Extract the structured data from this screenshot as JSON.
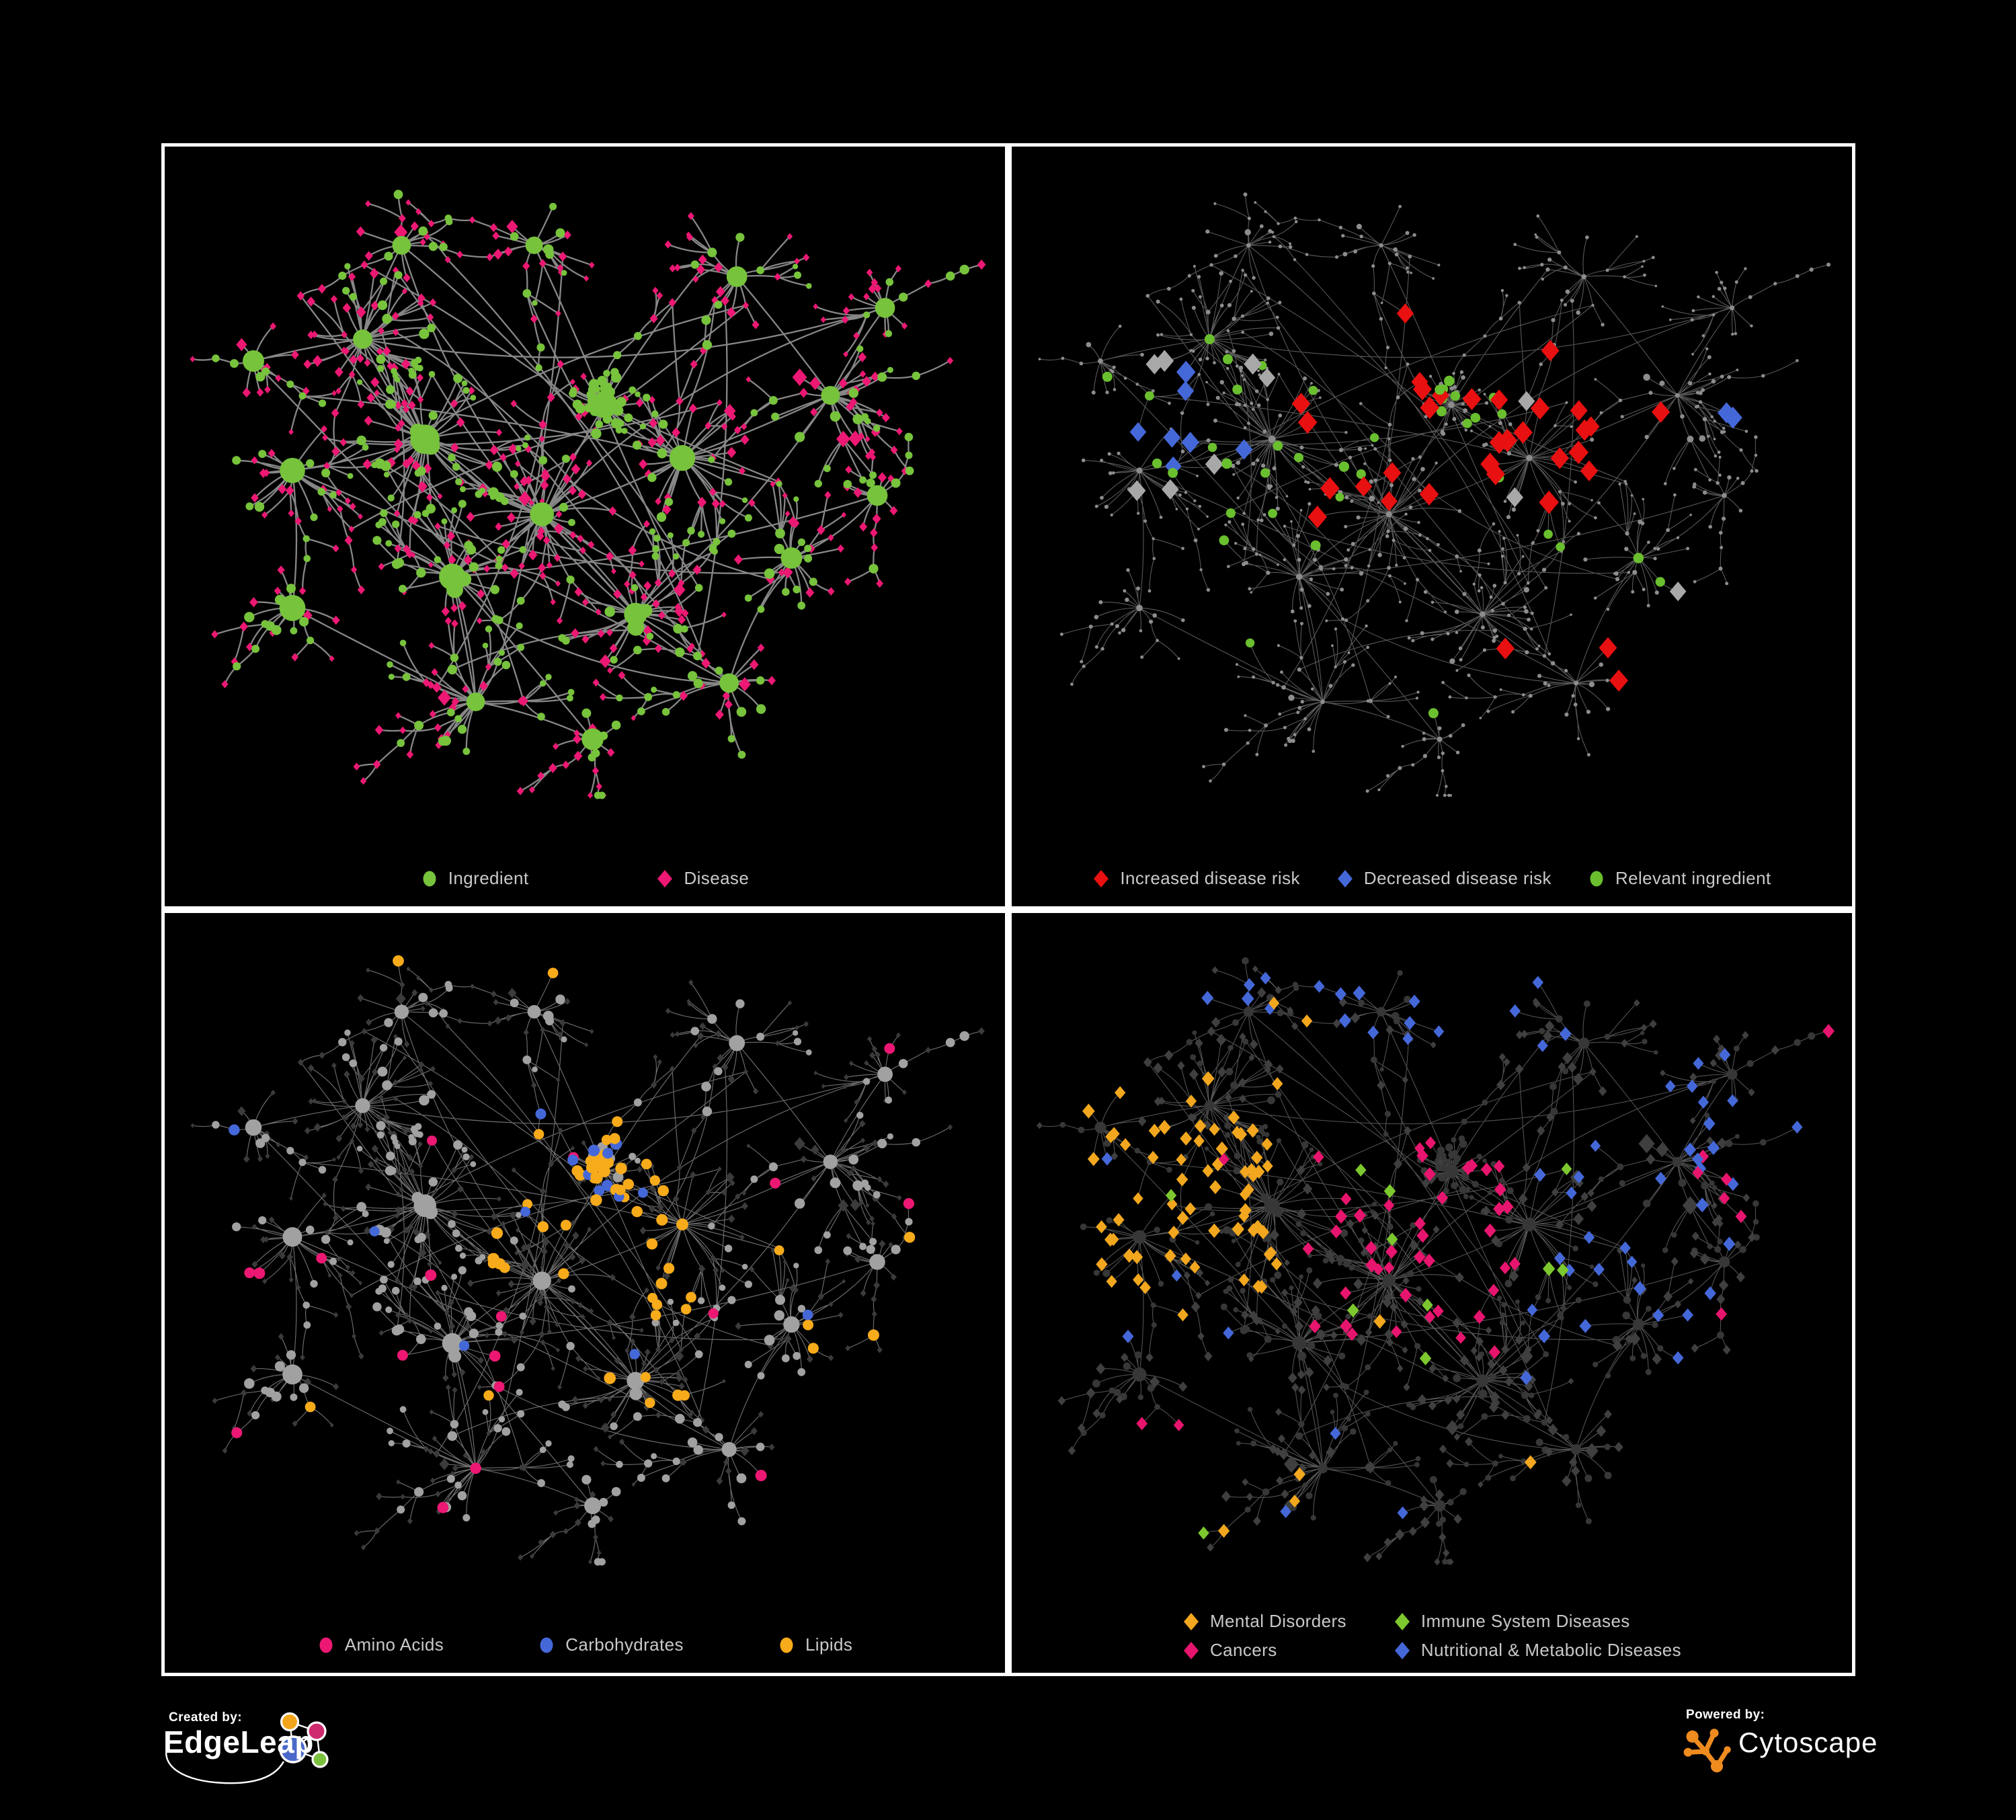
{
  "figure": {
    "background": "#000000",
    "panel_border": "#ffffff",
    "legend_text_color": "#c9c9c9"
  },
  "footer": {
    "created_by": "Created by:",
    "brand": "EdgeLeap",
    "powered_by": "Powered by:",
    "powered_brand": "Cytoscape",
    "edgeleap_colors": {
      "blue": "#4a69c9",
      "yellow": "#f2a51b",
      "pink": "#cf2a70",
      "green": "#7cc13e"
    },
    "cytoscape_orange": "#ef8b1f"
  },
  "panels": [
    {
      "name": "ingredient-disease-network",
      "legend": [
        {
          "label": "Ingredient",
          "shape": "circle",
          "color": "#77c33c"
        },
        {
          "label": "Disease",
          "shape": "diamond",
          "color": "#ec1873"
        }
      ],
      "style": {
        "edge": {
          "color": "#878787",
          "width": 2.3
        },
        "ing": {
          "shape": "circle",
          "fill": "#77c33c",
          "hub": 13,
          "leaf": 6.3
        },
        "dis": {
          "shape": "diamond",
          "fill": "#ec1873",
          "hub": 9,
          "leaf": 5.7
        },
        "top": "ing"
      },
      "highlights": []
    },
    {
      "name": "disease-risk-network",
      "legend": [
        {
          "label": "Increased disease risk",
          "shape": "diamond",
          "color": "#e81010"
        },
        {
          "label": "Decreased disease risk",
          "shape": "diamond",
          "color": "#4568d9"
        },
        {
          "label": "Relevant ingredient",
          "shape": "circle",
          "color": "#6abf2e"
        }
      ],
      "style": {
        "edge": {
          "color": "#585858",
          "width": 1.1
        },
        "ing": {
          "shape": "circle",
          "fill": "#8d8d8d",
          "hub": 3.2,
          "leaf": 2.7
        },
        "dis": {
          "shape": "circle",
          "fill": "#8d8d8d",
          "hub": 3.2,
          "leaf": 2.7
        },
        "top": null
      },
      "highlights": [
        {
          "type": "dis",
          "shape": "diamond",
          "color": "#e81010",
          "size": 12.5,
          "count": 27,
          "boxes": [
            [
              0.3,
              0.26,
              0.72,
              0.56
            ]
          ],
          "extras": [
            [
              0.735,
              0.74
            ],
            [
              0.785,
              0.79
            ],
            [
              0.6,
              0.77
            ],
            [
              0.52,
              0.225
            ],
            [
              0.725,
              0.4
            ],
            [
              0.78,
              0.385
            ]
          ]
        },
        {
          "type": "dis",
          "shape": "diamond",
          "color": "#4568d9",
          "size": 12.5,
          "count": 7,
          "boxes": [
            [
              0.1,
              0.3,
              0.27,
              0.5
            ]
          ],
          "extras": [
            [
              0.885,
              0.355
            ],
            [
              0.912,
              0.352
            ]
          ]
        },
        {
          "type": "dis",
          "shape": "diamond",
          "color": "#a8a8a8",
          "size": 11.5,
          "count": 9,
          "boxes": [
            [
              0.09,
              0.28,
              0.68,
              0.6
            ]
          ],
          "extras": [
            [
              0.83,
              0.735
            ]
          ]
        },
        {
          "type": "ing",
          "shape": "circle",
          "color": "#6abf2e",
          "size": 6.6,
          "count": 34,
          "boxes": [
            [
              0.08,
              0.24,
              0.7,
              0.6
            ]
          ],
          "extras": [
            [
              0.765,
              0.625
            ],
            [
              0.79,
              0.64
            ],
            [
              0.3,
              0.755
            ],
            [
              0.52,
              0.855
            ],
            [
              0.055,
              0.335
            ]
          ]
        }
      ]
    },
    {
      "name": "ingredient-class-network",
      "legend": [
        {
          "label": "Amino Acids",
          "shape": "circle",
          "color": "#ec1873"
        },
        {
          "label": "Carbohydrates",
          "shape": "circle",
          "color": "#4568d9"
        },
        {
          "label": "Lipids",
          "shape": "circle",
          "color": "#f7ab1a"
        }
      ],
      "style": {
        "edge": {
          "color": "#6d6d6d",
          "width": 1.15
        },
        "ing": {
          "shape": "circle",
          "fill": "#a1a1a1",
          "hub": 10,
          "leaf": 6.4
        },
        "dis": {
          "shape": "diamond",
          "fill": "#3b3b3b",
          "hub": 5.2,
          "leaf": 4.3
        },
        "top": "ing"
      },
      "highlights": [
        {
          "type": "ing",
          "color": "#f7ab1a",
          "size": 7.4,
          "count": 52,
          "boxes": [
            [
              0.37,
              0.2,
              0.64,
              0.6
            ],
            [
              0.5,
              0.6,
              0.64,
              0.76
            ]
          ],
          "extras": [
            [
              0.77,
              0.47
            ],
            [
              0.86,
              0.6
            ],
            [
              0.78,
              0.625
            ],
            [
              0.805,
              0.645
            ],
            [
              0.35,
              0.73
            ],
            [
              0.175,
              0.775
            ],
            [
              0.5,
              0.035
            ],
            [
              0.97,
              0.49
            ],
            [
              0.27,
              0.05
            ]
          ]
        },
        {
          "type": "ing",
          "color": "#4568d9",
          "size": 7.4,
          "count": 11,
          "boxes": [
            [
              0.42,
              0.24,
              0.62,
              0.46
            ]
          ],
          "extras": [
            [
              0.21,
              0.46
            ],
            [
              0.845,
              0.625
            ],
            [
              0.35,
              0.645
            ],
            [
              0.035,
              0.335
            ],
            [
              0.56,
              0.645
            ]
          ]
        },
        {
          "type": "ing",
          "color": "#ec1873",
          "size": 7.4,
          "count": 11,
          "boxes": [
            [
              0.02,
              0.5,
              0.98,
              0.92
            ]
          ],
          "extras": [
            [
              0.905,
              0.03
            ],
            [
              0.3,
              0.325
            ],
            [
              0.425,
              0.33
            ],
            [
              0.745,
              0.4
            ],
            [
              0.965,
              0.42
            ],
            [
              0.045,
              0.56
            ],
            [
              0.065,
              0.875
            ]
          ]
        }
      ]
    },
    {
      "name": "disease-class-network",
      "legend": [
        {
          "label": "Mental Disorders",
          "shape": "diamond",
          "color": "#f2a71f"
        },
        {
          "label": "Immune System Diseases",
          "shape": "diamond",
          "color": "#7cc82e"
        },
        {
          "label": "Cancers",
          "shape": "diamond",
          "color": "#e8156e"
        },
        {
          "label": "Nutritional & Metabolic Diseases",
          "shape": "diamond",
          "color": "#4568d9"
        }
      ],
      "style": {
        "edge": {
          "color": "#555555",
          "width": 1.05
        },
        "ing": {
          "shape": "circle",
          "fill": "#373737",
          "hub": 7,
          "leaf": 4.8
        },
        "dis": {
          "shape": "diamond",
          "fill": "#3f3f3f",
          "hub": 7.5,
          "leaf": 6.3
        },
        "top": "dis"
      },
      "highlights": [
        {
          "type": "dis",
          "color": "#f2a71f",
          "size": 7.8,
          "count": 68,
          "boxes": [
            [
              0.03,
              0.22,
              0.305,
              0.6
            ]
          ],
          "extras": [
            [
              0.3,
              0.1
            ],
            [
              0.335,
              0.13
            ],
            [
              0.36,
              0.875
            ],
            [
              0.385,
              0.9
            ],
            [
              0.63,
              0.845
            ],
            [
              0.25,
              0.955
            ],
            [
              0.44,
              0.6
            ]
          ]
        },
        {
          "type": "dis",
          "color": "#e8156e",
          "size": 7.8,
          "count": 44,
          "boxes": [
            [
              0.335,
              0.3,
              0.625,
              0.66
            ]
          ],
          "extras": [
            [
              0.845,
              0.375
            ],
            [
              0.865,
              0.395
            ],
            [
              0.885,
              0.415
            ],
            [
              0.87,
              0.355
            ],
            [
              0.9,
              0.44
            ],
            [
              0.205,
              0.75
            ],
            [
              0.185,
              0.78
            ],
            [
              0.935,
              0.6
            ],
            [
              0.255,
              0.4
            ],
            [
              0.96,
              0.095
            ]
          ]
        },
        {
          "type": "dis",
          "color": "#4568d9",
          "size": 7.8,
          "count": 52,
          "boxes": [
            [
              0.615,
              0.28,
              0.97,
              0.76
            ],
            [
              0.25,
              0.02,
              0.72,
              0.17
            ],
            [
              0.73,
              0.18,
              0.97,
              0.28
            ]
          ],
          "extras": [
            [
              0.07,
              0.4
            ],
            [
              0.165,
              0.565
            ],
            [
              0.255,
              0.635
            ],
            [
              0.105,
              0.075
            ],
            [
              0.4,
              0.775
            ],
            [
              0.455,
              0.92
            ],
            [
              0.3,
              0.935
            ],
            [
              0.065,
              0.545
            ]
          ]
        },
        {
          "type": "dis",
          "color": "#7cc82e",
          "size": 7.8,
          "count": 8,
          "boxes": [
            [
              0.32,
              0.25,
              0.68,
              0.68
            ]
          ],
          "extras": [
            [
              0.19,
              0.93
            ],
            [
              0.68,
              0.55
            ],
            [
              0.115,
              0.435
            ]
          ]
        }
      ]
    }
  ]
}
